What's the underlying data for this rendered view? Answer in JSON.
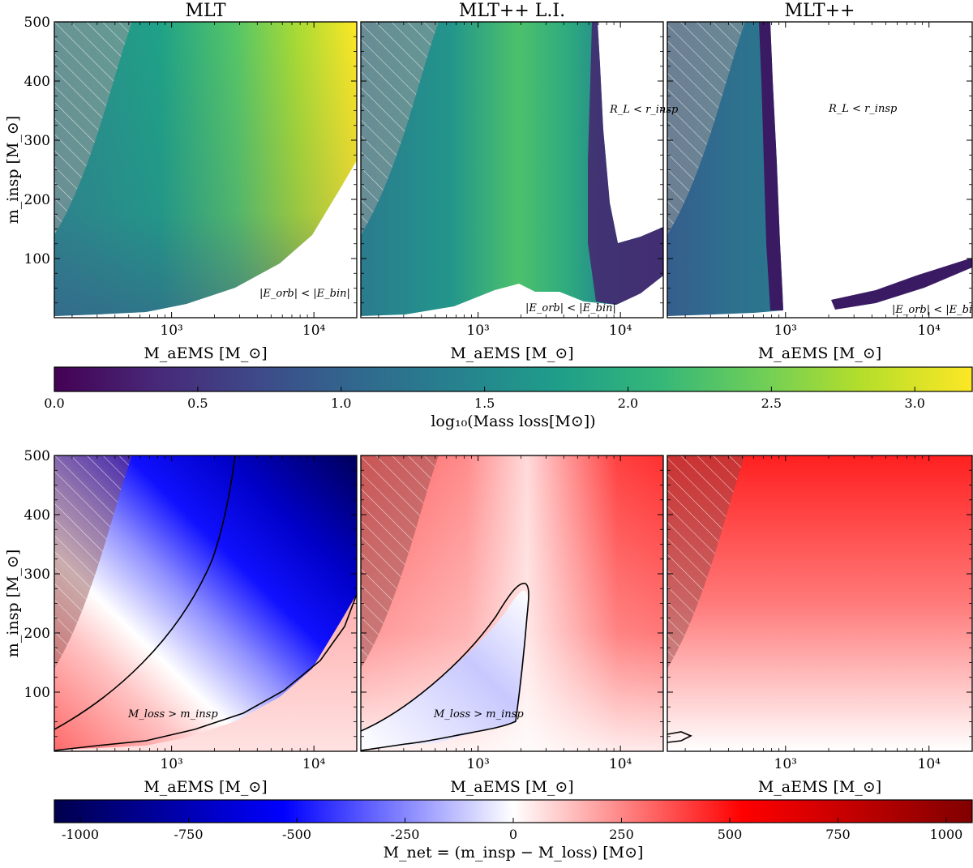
{
  "figure": {
    "top_titles": [
      "MLT",
      "MLT++ L.I.",
      "MLT++"
    ],
    "x_label": "M_aEMS [M_⊙]",
    "y_label": "m_insp [M_⊙]",
    "x_tick_labels": [
      "10³",
      "10⁴"
    ],
    "y_tick_labels": [
      "100",
      "200",
      "300",
      "400",
      "500"
    ]
  },
  "colors": {
    "viridis": [
      "#440154",
      "#482878",
      "#3e4989",
      "#31688e",
      "#26828e",
      "#1f9e89",
      "#35b779",
      "#6ece58",
      "#b5de2b",
      "#fde725"
    ],
    "seismic": [
      "#00004c",
      "#0000ff",
      "#ffffff",
      "#ff0000",
      "#800000"
    ],
    "hatch_region": "#b0b0b0"
  },
  "colorbar_top": {
    "label": "log₁₀(Mass loss[M⊙])",
    "ticks": [
      "0.0",
      "0.5",
      "1.0",
      "1.5",
      "2.0",
      "2.5",
      "3.0"
    ],
    "range": [
      0,
      3.2
    ]
  },
  "colorbar_bottom": {
    "label": "M_net = (m_insp − M_loss) [M⊙]",
    "ticks": [
      "-1000",
      "-750",
      "-500",
      "-250",
      "0",
      "250",
      "500",
      "750",
      "1000"
    ],
    "range": [
      -1060,
      1060
    ]
  },
  "annotations": {
    "mlt_top": "|E_orb| < |E_bin|",
    "li_top_a": "R_L < r_insp",
    "li_top_b": "|E_orb| < |E_bin|",
    "pp_top_a": "R_L < r_insp",
    "pp_top_b": "|E_orb| < |E_bin|",
    "mlt_bottom": "M_loss > m_insp",
    "li_bottom": "M_loss > m_insp"
  },
  "chart_data": [
    {
      "type": "heatmap",
      "title": "MLT",
      "xlabel": "M_aEMS [M_⊙]",
      "ylabel": "m_insp [M_⊙]",
      "xscale": "log",
      "xlim": [
        150,
        20000
      ],
      "ylim": [
        0,
        500
      ],
      "color_quantity": "log10(Mass loss)",
      "color_range": [
        0,
        3.2
      ],
      "note": "values rise with M_aEMS to ~3.2 at right; white region |E_orb| < |E_bin| at lower right"
    },
    {
      "type": "heatmap",
      "title": "MLT++ L.I.",
      "xlabel": "M_aEMS [M_⊙]",
      "ylabel": "m_insp [M_⊙]",
      "xscale": "log",
      "xlim": [
        150,
        20000
      ],
      "ylim": [
        0,
        500
      ],
      "color_quantity": "log10(Mass loss)",
      "color_range": [
        0,
        3.2
      ],
      "note": "peak ~2.2 near M_aEMS ~ 1000; white region R_L < r_insp at upper right"
    },
    {
      "type": "heatmap",
      "title": "MLT++",
      "xlabel": "M_aEMS [M_⊙]",
      "ylabel": "m_insp [M_⊙]",
      "xscale": "log",
      "xlim": [
        150,
        20000
      ],
      "ylim": [
        0,
        500
      ],
      "color_quantity": "log10(Mass loss)",
      "color_range": [
        0,
        3.2
      ],
      "note": "values ~0.3-1.3 only below M_aEMS ~ 800"
    },
    {
      "type": "heatmap",
      "title": "MLT",
      "xlabel": "M_aEMS [M_⊙]",
      "ylabel": "m_insp [M_⊙]",
      "xscale": "log",
      "xlim": [
        150,
        20000
      ],
      "ylim": [
        0,
        500
      ],
      "color_quantity": "M_net",
      "color_range": [
        -1060,
        1060
      ],
      "note": "strongly negative (blue, to -1060) at high M_aEMS; contour M_loss > m_insp"
    },
    {
      "type": "heatmap",
      "title": "MLT++ L.I.",
      "xlabel": "M_aEMS [M_⊙]",
      "ylabel": "m_insp [M_⊙]",
      "xscale": "log",
      "xlim": [
        150,
        20000
      ],
      "ylim": [
        0,
        500
      ],
      "color_quantity": "M_net",
      "color_range": [
        -1060,
        1060
      ],
      "note": "mostly positive; small negative lobe M_loss > m_insp below M_aEMS ~ 2000"
    },
    {
      "type": "heatmap",
      "title": "MLT++",
      "xlabel": "M_aEMS [M_⊙]",
      "ylabel": "m_insp [M_⊙]",
      "xscale": "log",
      "xlim": [
        150,
        20000
      ],
      "ylim": [
        0,
        500
      ],
      "color_quantity": "M_net",
      "color_range": [
        -1060,
        1060
      ],
      "note": "positive everywhere, equal to m_insp"
    }
  ]
}
